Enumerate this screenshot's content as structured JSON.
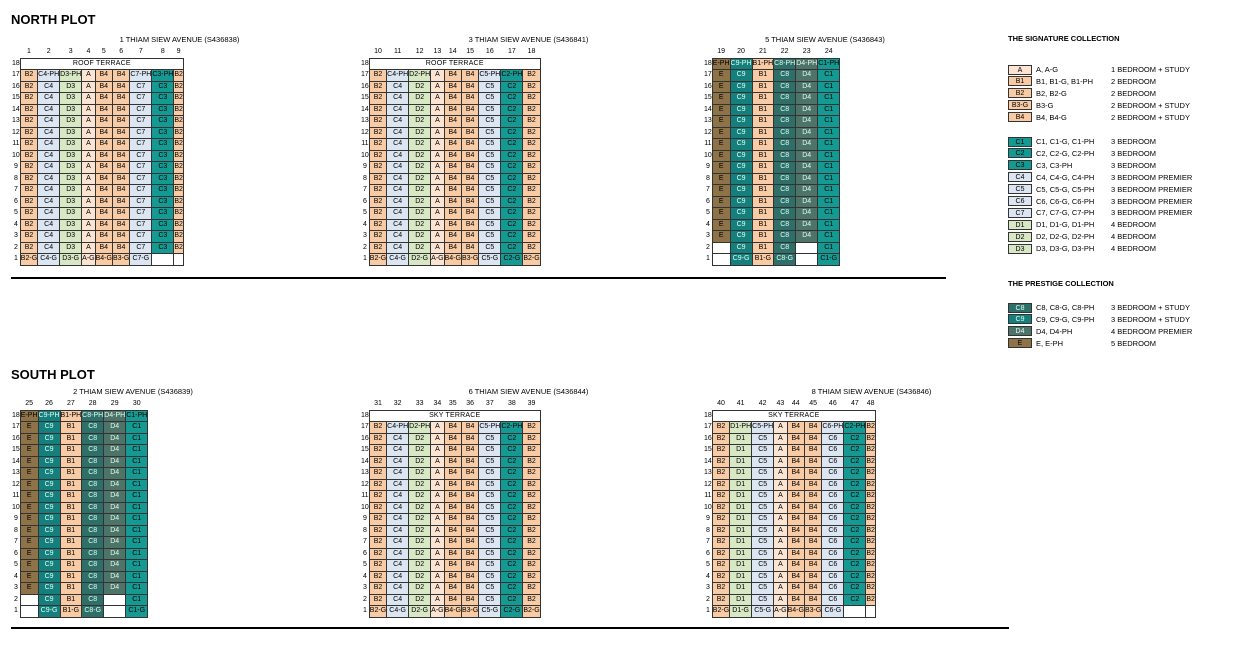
{
  "colors": {
    "A": "#fce4d3",
    "B": "#f8cba4",
    "E": "#8e7248",
    "C1": "#149a92",
    "C2": "#149a92",
    "C3": "#149a92",
    "C4": "#dce6f2",
    "C5": "#dce6f2",
    "C6": "#dce6f2",
    "C7": "#dce6f2",
    "D1": "#d8e8c4",
    "D2": "#d8e8c4",
    "D3": "#d8e8c4",
    "C8": "#2e6f6a",
    "C9": "#147f7c",
    "D4": "#4e7368"
  },
  "north": {
    "title": "NORTH PLOT",
    "blocks": [
      {
        "address": "1 THIAM SIEW AVENUE (S436838)",
        "stacks": [
          "1",
          "2",
          "3",
          "4",
          "5",
          "6",
          "7",
          "8",
          "9"
        ],
        "band": "ROOF TERRACE",
        "band_level": 18,
        "band_start": 1,
        "band_end": 9,
        "top": [
          "B2",
          "C4-PH",
          "D3-PH",
          "A",
          "B4",
          "B4",
          "C7-PH",
          "C3-PH",
          "B2"
        ],
        "mid": [
          "B2",
          "C4",
          "D3",
          "A",
          "B4",
          "B4",
          "C7",
          "C3",
          "B2"
        ],
        "ground": [
          "B2-G",
          "C4-G",
          "D3-G",
          "A-G",
          "B4-G",
          "B3-G",
          "C7-G",
          "",
          ""
        ]
      },
      {
        "address": "3 THIAM SIEW AVENUE (S436841)",
        "stacks": [
          "10",
          "11",
          "12",
          "13",
          "14",
          "15",
          "16",
          "17",
          "18"
        ],
        "band": "ROOF TERRACE",
        "band_level": 18,
        "band_start": 1,
        "band_end": 9,
        "top": [
          "B2",
          "C4-PH",
          "D2-PH",
          "A",
          "B4",
          "B4",
          "C5-PH",
          "C2-PH",
          "B2"
        ],
        "mid": [
          "B2",
          "C4",
          "D2",
          "A",
          "B4",
          "B4",
          "C5",
          "C2",
          "B2"
        ],
        "ground": [
          "B2-G",
          "C4-G",
          "D2-G",
          "A-G",
          "B4-G",
          "B3-G",
          "C5-G",
          "C2-G",
          "B2-G"
        ]
      },
      {
        "address": "5 THIAM SIEW AVENUE (S436843)",
        "stacks": [
          "19",
          "20",
          "21",
          "22",
          "23",
          "24"
        ],
        "band": "",
        "band_level": 18,
        "band_start": 0,
        "band_end": 0,
        "l18": [
          "E-PH",
          "C9-PH",
          "B1-PH",
          "C8-PH",
          "D4-PH",
          "C1-PH"
        ],
        "top": [
          "E",
          "C9",
          "B1",
          "C8",
          "D4",
          "C1"
        ],
        "mid": [
          "E",
          "C9",
          "B1",
          "C8",
          "D4",
          "C1"
        ],
        "l2": [
          "",
          "C9",
          "B1",
          "C8",
          "",
          "C1"
        ],
        "ground": [
          "",
          "C9-G",
          "B1-G",
          "C8-G",
          "",
          "C1-G"
        ]
      }
    ]
  },
  "south": {
    "title": "SOUTH PLOT",
    "blocks": [
      {
        "address": "2 THIAM SIEW AVENUE (S436839)",
        "stacks": [
          "25",
          "26",
          "27",
          "28",
          "29",
          "30"
        ],
        "band": "",
        "band_level": 18,
        "band_start": 0,
        "band_end": 0,
        "l18": [
          "E-PH",
          "C9-PH",
          "B1-PH",
          "C8-PH",
          "D4-PH",
          "C1-PH"
        ],
        "top": [
          "E",
          "C9",
          "B1",
          "C8",
          "D4",
          "C1"
        ],
        "mid": [
          "E",
          "C9",
          "B1",
          "C8",
          "D4",
          "C1"
        ],
        "l2": [
          "",
          "C9",
          "B1",
          "C8",
          "",
          "C1"
        ],
        "ground": [
          "",
          "C9-G",
          "B1-G",
          "C8-G",
          "",
          "C1-G"
        ]
      },
      {
        "address": "6 THIAM SIEW AVENUE (S436844)",
        "stacks": [
          "31",
          "32",
          "33",
          "34",
          "35",
          "36",
          "37",
          "38",
          "39"
        ],
        "band": "SKY TERRACE",
        "band_level": 18,
        "band_start": 1,
        "band_end": 9,
        "top": [
          "B2",
          "C4-PH",
          "D2-PH",
          "A",
          "B4",
          "B4",
          "C5-PH",
          "C2-PH",
          "B2"
        ],
        "mid": [
          "B2",
          "C4",
          "D2",
          "A",
          "B4",
          "B4",
          "C5",
          "C2",
          "B2"
        ],
        "ground": [
          "B2-G",
          "C4-G",
          "D2-G",
          "A-G",
          "B4-G",
          "B3-G",
          "C5-G",
          "C2-G",
          "B2-G"
        ]
      },
      {
        "address": "8 THIAM SIEW AVENUE (S436846)",
        "stacks": [
          "40",
          "41",
          "42",
          "43",
          "44",
          "45",
          "46",
          "47",
          "48"
        ],
        "band": "SKY TERRACE",
        "band_level": 18,
        "band_start": 1,
        "band_end": 9,
        "top": [
          "B2",
          "D1-PH",
          "C5-PH",
          "A",
          "B4",
          "B4",
          "C6-PH",
          "C2-PH",
          "B2"
        ],
        "mid": [
          "B2",
          "D1",
          "C5",
          "A",
          "B4",
          "B4",
          "C6",
          "C2",
          "B2"
        ],
        "ground": [
          "B2-G",
          "D1-G",
          "C5-G",
          "A-G",
          "B4-G",
          "B3-G",
          "C6-G",
          "",
          ""
        ]
      }
    ]
  },
  "legend": {
    "signature_title": "THE SIGNATURE COLLECTION",
    "prestige_title": "THE PRESTIGE COLLECTION",
    "signature_a": [
      {
        "code": "A",
        "units": "A, A-G",
        "desc": "1 BEDROOM + STUDY"
      },
      {
        "code": "B1",
        "units": "B1, B1-G, B1-PH",
        "desc": "2 BEDROOM"
      },
      {
        "code": "B2",
        "units": "B2, B2-G",
        "desc": "2 BEDROOM"
      },
      {
        "code": "B3-G",
        "units": "B3-G",
        "desc": "2 BEDROOM + STUDY"
      },
      {
        "code": "B4",
        "units": "B4, B4-G",
        "desc": "2 BEDROOM + STUDY"
      }
    ],
    "signature_b": [
      {
        "code": "C1",
        "units": "C1, C1-G, C1-PH",
        "desc": "3 BEDROOM"
      },
      {
        "code": "C2",
        "units": "C2, C2-G, C2-PH",
        "desc": "3 BEDROOM"
      },
      {
        "code": "C3",
        "units": "C3, C3-PH",
        "desc": "3 BEDROOM"
      },
      {
        "code": "C4",
        "units": "C4, C4-G, C4-PH",
        "desc": "3 BEDROOM PREMIER"
      },
      {
        "code": "C5",
        "units": "C5, C5-G, C5-PH",
        "desc": "3 BEDROOM PREMIER"
      },
      {
        "code": "C6",
        "units": "C6, C6-G, C6-PH",
        "desc": "3 BEDROOM PREMIER"
      },
      {
        "code": "C7",
        "units": "C7, C7-G, C7-PH",
        "desc": "3 BEDROOM PREMIER"
      },
      {
        "code": "D1",
        "units": "D1, D1-G, D1-PH",
        "desc": "4 BEDROOM"
      },
      {
        "code": "D2",
        "units": "D2, D2-G, D2-PH",
        "desc": "4 BEDROOM"
      },
      {
        "code": "D3",
        "units": "D3, D3-G, D3-PH",
        "desc": "4 BEDROOM"
      }
    ],
    "prestige": [
      {
        "code": "C8",
        "units": "C8, C8-G, C8-PH",
        "desc": "3 BEDROOM + STUDY"
      },
      {
        "code": "C9",
        "units": "C9, C9-G, C9-PH",
        "desc": "3 BEDROOM + STUDY"
      },
      {
        "code": "D4",
        "units": "D4, D4-PH",
        "desc": "4 BEDROOM PREMIER"
      },
      {
        "code": "E",
        "units": "E, E-PH",
        "desc": "5 BEDROOM"
      }
    ]
  }
}
